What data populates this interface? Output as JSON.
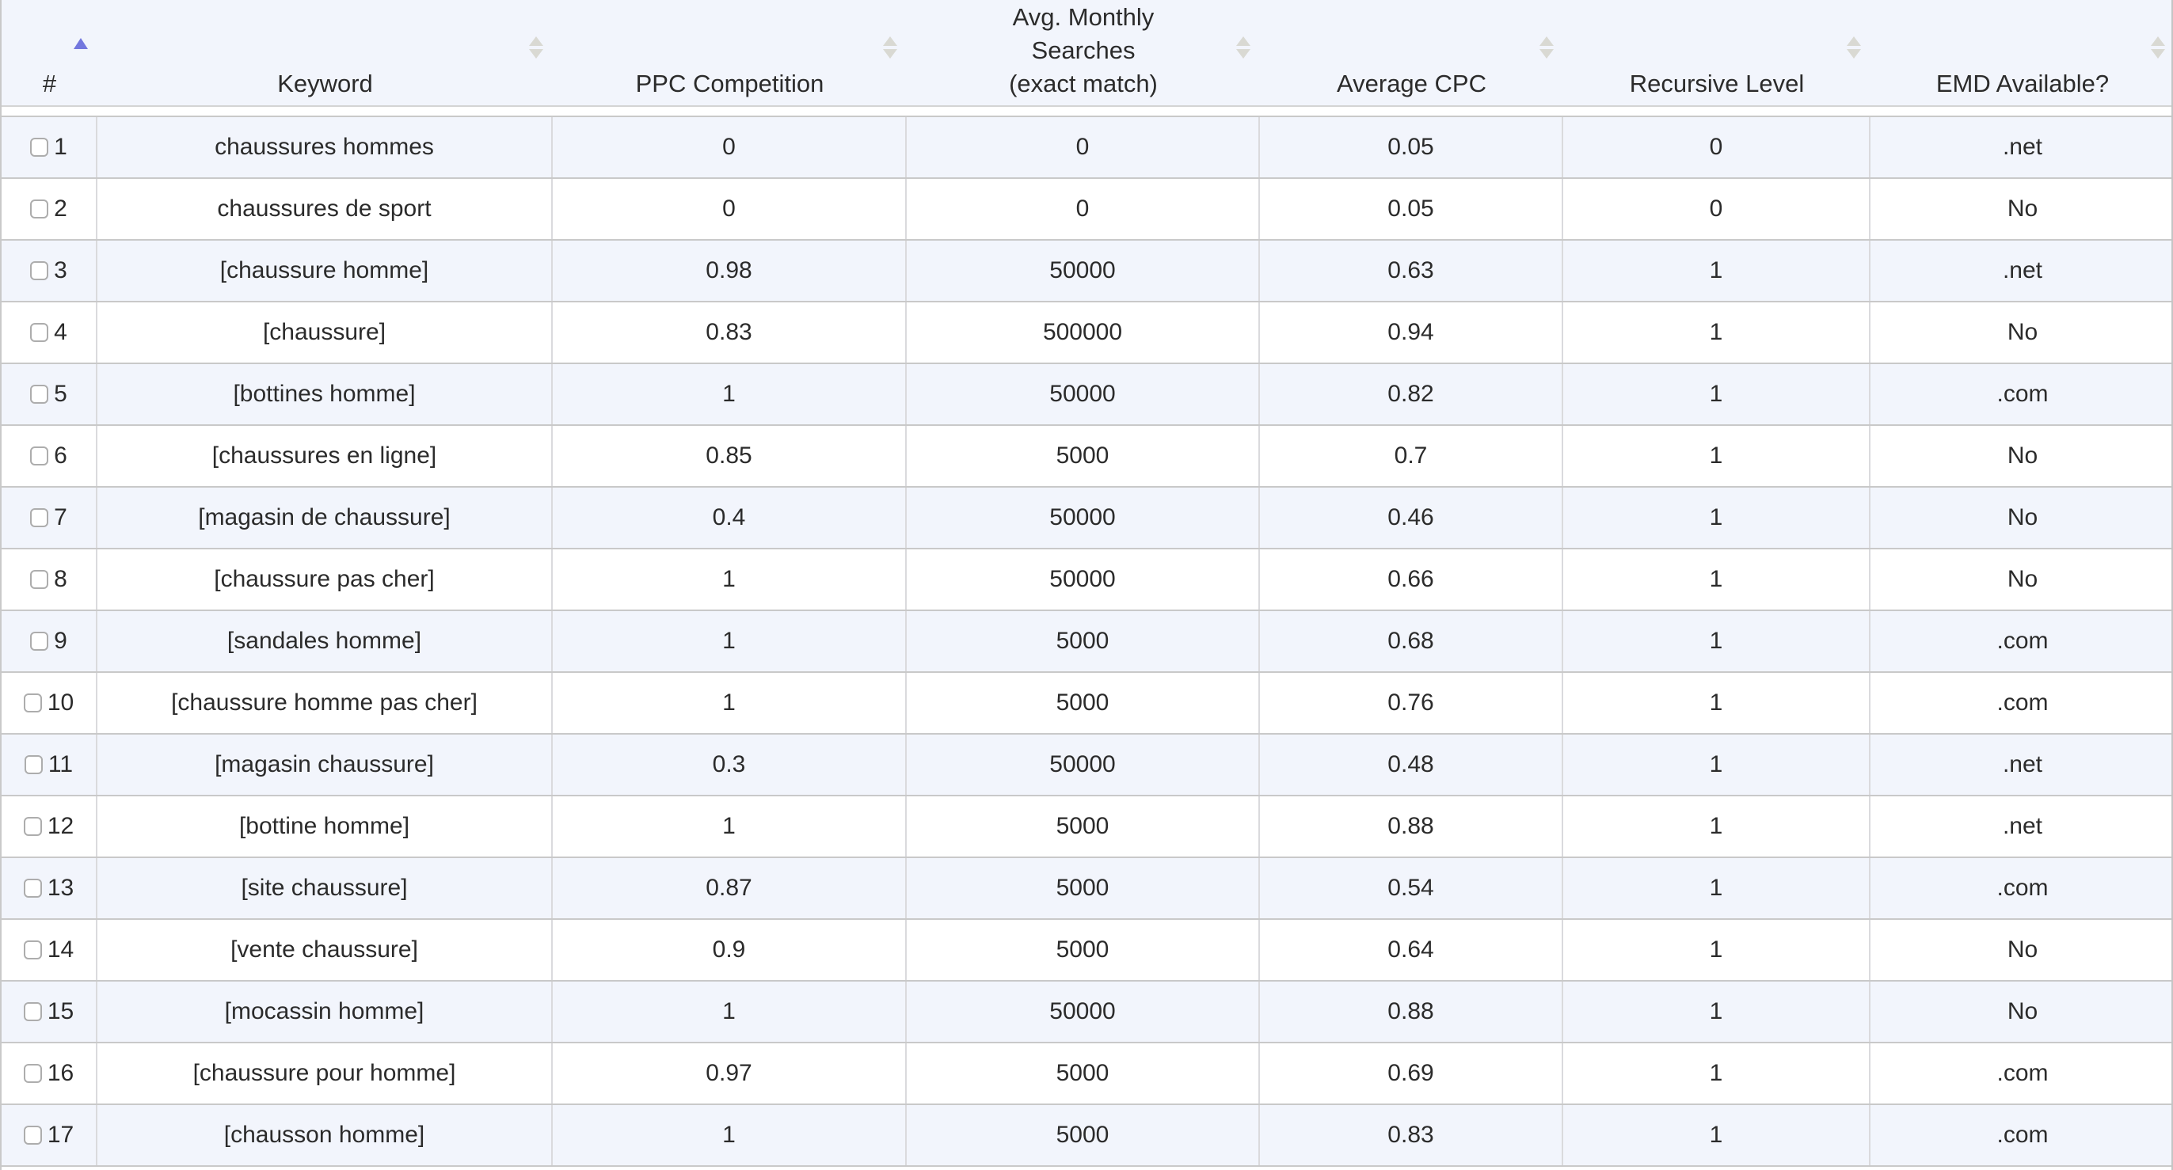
{
  "table": {
    "sort": {
      "column_label": "#",
      "direction": "ascending"
    },
    "columns": [
      {
        "id": "num",
        "label": "#",
        "sort_icon": "sort-asc-icon"
      },
      {
        "id": "keyword",
        "label": "Keyword",
        "sort_icon": "sort-neutral-icon"
      },
      {
        "id": "ppc_competition",
        "label": "PPC Competition",
        "sort_icon": "sort-neutral-icon"
      },
      {
        "id": "avg_monthly_searches",
        "label": "Avg. Monthly Searches (exact match)",
        "sort_icon": "sort-neutral-icon"
      },
      {
        "id": "average_cpc",
        "label": "Average CPC",
        "sort_icon": "sort-neutral-icon"
      },
      {
        "id": "recursive_level",
        "label": "Recursive Level",
        "sort_icon": "sort-neutral-icon"
      },
      {
        "id": "emd_available",
        "label": "EMD Available?",
        "sort_icon": "sort-neutral-icon"
      }
    ],
    "rows": [
      {
        "num": "1",
        "checked": false,
        "keyword": "chaussures hommes",
        "ppc_competition": "0",
        "avg_monthly_searches": "0",
        "average_cpc": "0.05",
        "recursive_level": "0",
        "emd_available": ".net"
      },
      {
        "num": "2",
        "checked": false,
        "keyword": "chaussures de sport",
        "ppc_competition": "0",
        "avg_monthly_searches": "0",
        "average_cpc": "0.05",
        "recursive_level": "0",
        "emd_available": "No"
      },
      {
        "num": "3",
        "checked": false,
        "keyword": "[chaussure homme]",
        "ppc_competition": "0.98",
        "avg_monthly_searches": "50000",
        "average_cpc": "0.63",
        "recursive_level": "1",
        "emd_available": ".net"
      },
      {
        "num": "4",
        "checked": false,
        "keyword": "[chaussure]",
        "ppc_competition": "0.83",
        "avg_monthly_searches": "500000",
        "average_cpc": "0.94",
        "recursive_level": "1",
        "emd_available": "No"
      },
      {
        "num": "5",
        "checked": false,
        "keyword": "[bottines homme]",
        "ppc_competition": "1",
        "avg_monthly_searches": "50000",
        "average_cpc": "0.82",
        "recursive_level": "1",
        "emd_available": ".com"
      },
      {
        "num": "6",
        "checked": false,
        "keyword": "[chaussures en ligne]",
        "ppc_competition": "0.85",
        "avg_monthly_searches": "5000",
        "average_cpc": "0.7",
        "recursive_level": "1",
        "emd_available": "No"
      },
      {
        "num": "7",
        "checked": false,
        "keyword": "[magasin de chaussure]",
        "ppc_competition": "0.4",
        "avg_monthly_searches": "50000",
        "average_cpc": "0.46",
        "recursive_level": "1",
        "emd_available": "No"
      },
      {
        "num": "8",
        "checked": false,
        "keyword": "[chaussure pas cher]",
        "ppc_competition": "1",
        "avg_monthly_searches": "50000",
        "average_cpc": "0.66",
        "recursive_level": "1",
        "emd_available": "No"
      },
      {
        "num": "9",
        "checked": false,
        "keyword": "[sandales homme]",
        "ppc_competition": "1",
        "avg_monthly_searches": "5000",
        "average_cpc": "0.68",
        "recursive_level": "1",
        "emd_available": ".com"
      },
      {
        "num": "10",
        "checked": false,
        "keyword": "[chaussure homme pas cher]",
        "ppc_competition": "1",
        "avg_monthly_searches": "5000",
        "average_cpc": "0.76",
        "recursive_level": "1",
        "emd_available": ".com"
      },
      {
        "num": "11",
        "checked": false,
        "keyword": "[magasin chaussure]",
        "ppc_competition": "0.3",
        "avg_monthly_searches": "50000",
        "average_cpc": "0.48",
        "recursive_level": "1",
        "emd_available": ".net"
      },
      {
        "num": "12",
        "checked": false,
        "keyword": "[bottine homme]",
        "ppc_competition": "1",
        "avg_monthly_searches": "5000",
        "average_cpc": "0.88",
        "recursive_level": "1",
        "emd_available": ".net"
      },
      {
        "num": "13",
        "checked": false,
        "keyword": "[site chaussure]",
        "ppc_competition": "0.87",
        "avg_monthly_searches": "5000",
        "average_cpc": "0.54",
        "recursive_level": "1",
        "emd_available": ".com"
      },
      {
        "num": "14",
        "checked": false,
        "keyword": "[vente chaussure]",
        "ppc_competition": "0.9",
        "avg_monthly_searches": "5000",
        "average_cpc": "0.64",
        "recursive_level": "1",
        "emd_available": "No"
      },
      {
        "num": "15",
        "checked": false,
        "keyword": "[mocassin homme]",
        "ppc_competition": "1",
        "avg_monthly_searches": "50000",
        "average_cpc": "0.88",
        "recursive_level": "1",
        "emd_available": "No"
      },
      {
        "num": "16",
        "checked": false,
        "keyword": "[chaussure pour homme]",
        "ppc_competition": "0.97",
        "avg_monthly_searches": "5000",
        "average_cpc": "0.69",
        "recursive_level": "1",
        "emd_available": ".com"
      },
      {
        "num": "17",
        "checked": false,
        "keyword": "[chausson homme]",
        "ppc_competition": "1",
        "avg_monthly_searches": "5000",
        "average_cpc": "0.83",
        "recursive_level": "1",
        "emd_available": ".com"
      }
    ]
  },
  "colors": {
    "header_bg": "#f2f5fc",
    "odd_row_bg": "#f2f5fc",
    "even_row_bg": "#ffffff",
    "horizontal_border": "#c9c9c9",
    "vertical_border": "#dadadd",
    "text": "#2b2b2b",
    "sort_neutral_arrow": "#d9d9d3",
    "sort_active_arrow": "#7377de"
  }
}
